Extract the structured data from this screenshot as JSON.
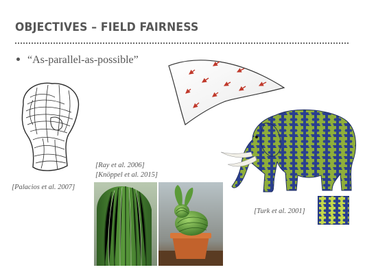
{
  "slide": {
    "title": "OBJECTIVES – FIELD FAIRNESS",
    "bullet": "“As-parallel-as-possible”"
  },
  "citations": {
    "palacios": "[Palacios et al. 2007]",
    "ray": "[Ray et al. 2006]",
    "knoppel": "[Knöppel et al. 2015]",
    "turk": "[Turk et al. 2001]"
  },
  "figures": {
    "sketch": "hatched-sketch-figure",
    "vector_surface": "arrow-field-surface",
    "cactus": "cactus-photo",
    "bunny": "cactus-bunny-render",
    "elephant": "puzzle-textured-elephant",
    "swatch": "puzzle-texture-swatch"
  },
  "colors": {
    "title": "#565656",
    "arrow": "#c0392b",
    "puzzle_blue": "#2a3f8f",
    "puzzle_green": "#8fae3a",
    "cactus_green": "#3f7a2c"
  }
}
